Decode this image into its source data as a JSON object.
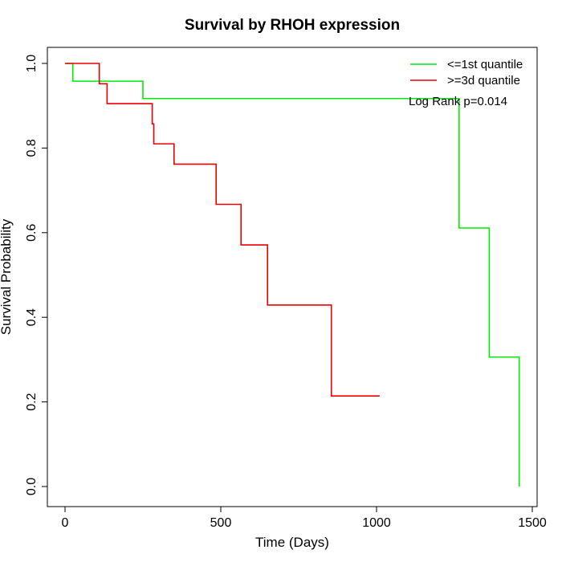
{
  "chart_data": {
    "type": "line",
    "title": "Survival by RHOH expression",
    "xlabel": "Time (Days)",
    "ylabel": "Survival Probability",
    "xlim": [
      0,
      1500
    ],
    "ylim": [
      0,
      1.0
    ],
    "xticks": [
      0,
      500,
      1000,
      1500
    ],
    "yticks": [
      0.0,
      0.2,
      0.4,
      0.6,
      0.8,
      1.0
    ],
    "xtick_labels": [
      "0",
      "500",
      "1000",
      "1500"
    ],
    "ytick_labels": [
      "0.0",
      "0.2",
      "0.4",
      "0.6",
      "0.8",
      "1.0"
    ],
    "grid": false,
    "legend_position": "top-right",
    "annotation": "Log Rank p=0.014",
    "series": [
      {
        "name": "<=1st quantile",
        "color": "#00ee00",
        "step": true,
        "x": [
          0,
          25,
          250,
          1265,
          1362,
          1458,
          1458
        ],
        "y": [
          1.0,
          0.958,
          0.917,
          0.611,
          0.306,
          0.306,
          0.0
        ]
      },
      {
        "name": ">=3d quantile",
        "color": "#ee0000",
        "step": true,
        "x": [
          0,
          110,
          135,
          280,
          285,
          350,
          485,
          565,
          650,
          855,
          1010
        ],
        "y": [
          1.0,
          0.952,
          0.905,
          0.857,
          0.81,
          0.762,
          0.667,
          0.571,
          0.429,
          0.214,
          0.214
        ]
      }
    ]
  }
}
